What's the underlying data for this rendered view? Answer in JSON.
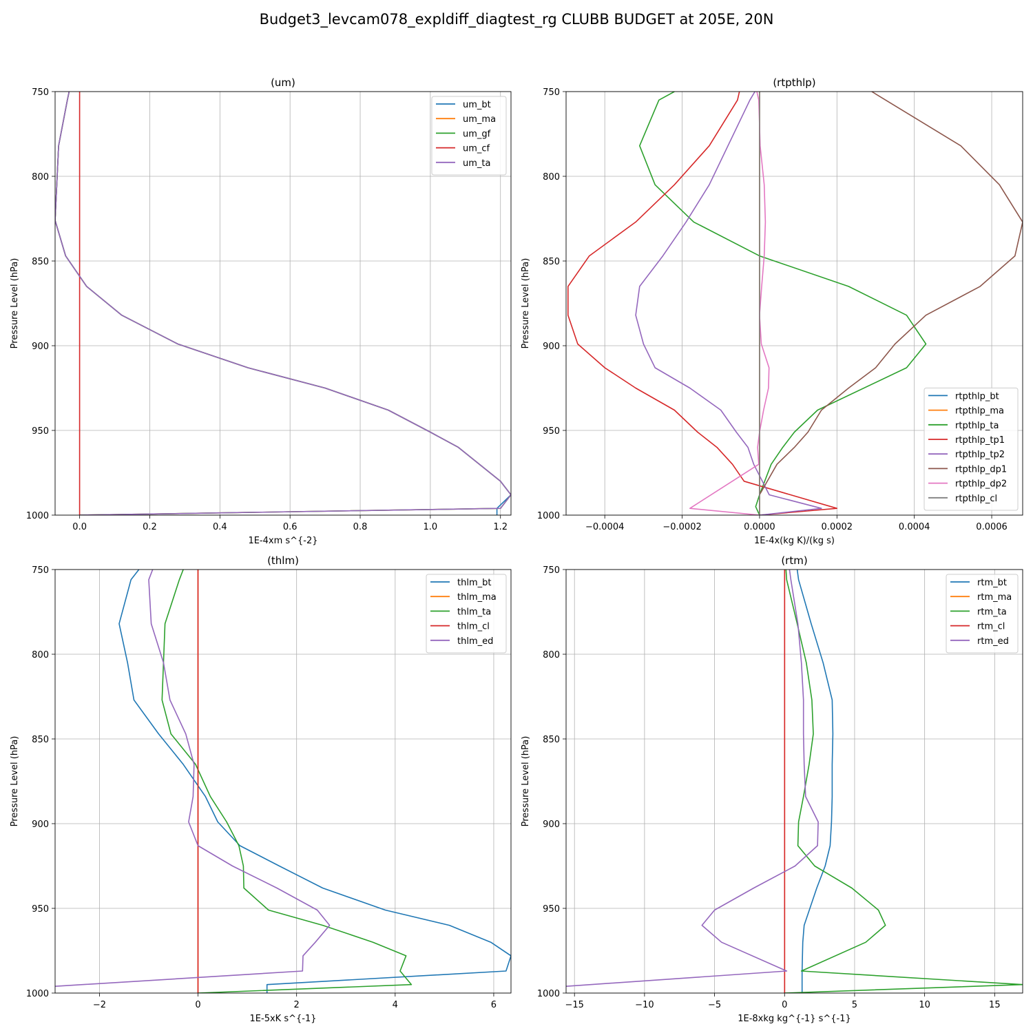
{
  "suptitle": "Budget3_levcam078_expldiff_diagtest_rg CLUBB BUDGET at 205E, 20N",
  "chart_data": [
    {
      "type": "line",
      "title": "(um)",
      "xlabel": "1E-4xm s^{-2}",
      "ylabel": "Pressure Level (hPa)",
      "xlim": [
        -0.07,
        1.23
      ],
      "ylim": [
        1000,
        750
      ],
      "xticks": [
        0.0,
        0.2,
        0.4,
        0.6,
        0.8,
        1.0,
        1.2
      ],
      "xtick_labels": [
        "0.0",
        "0.2",
        "0.4",
        "0.6",
        "0.8",
        "1.0",
        "1.2"
      ],
      "yticks": [
        750,
        800,
        850,
        900,
        950,
        1000
      ],
      "ytick_labels": [
        "750",
        "800",
        "850",
        "900",
        "950",
        "1000"
      ],
      "grid": true,
      "legend_position": "top-right",
      "series": [
        {
          "name": "um_bt",
          "color": "#1f77b4",
          "x": [
            -0.03,
            -0.035,
            -0.06,
            -0.07,
            -0.04,
            0.02,
            0.12,
            0.28,
            0.48,
            0.7,
            0.88,
            1.0,
            1.08,
            1.2,
            1.23,
            1.19,
            1.19
          ],
          "y": [
            750,
            755,
            782,
            826,
            847,
            865,
            882,
            899,
            913,
            925,
            938,
            951,
            960,
            980,
            988,
            996,
            1000
          ]
        },
        {
          "name": "um_ma",
          "color": "#ff7f0e",
          "x": [
            -0.03,
            -0.035,
            -0.06,
            -0.07,
            -0.04,
            0.02,
            0.12,
            0.28,
            0.48,
            0.7,
            0.88,
            1.0,
            1.08,
            1.2,
            1.23,
            1.2,
            0.0
          ],
          "y": [
            750,
            755,
            782,
            826,
            847,
            865,
            882,
            899,
            913,
            925,
            938,
            951,
            960,
            980,
            988,
            996,
            1000
          ]
        },
        {
          "name": "um_gf",
          "color": "#2ca02c",
          "x": [
            -0.03,
            -0.035,
            -0.06,
            -0.07,
            -0.04,
            0.02,
            0.12,
            0.28,
            0.48,
            0.7,
            0.88,
            1.0,
            1.08,
            1.2,
            1.23,
            1.2,
            0.0
          ],
          "y": [
            750,
            755,
            782,
            826,
            847,
            865,
            882,
            899,
            913,
            925,
            938,
            951,
            960,
            980,
            988,
            996,
            1000
          ]
        },
        {
          "name": "um_cf",
          "color": "#d62728",
          "x": [
            0.0,
            0.0
          ],
          "y": [
            750,
            1000
          ]
        },
        {
          "name": "um_ta",
          "color": "#9467bd",
          "x": [
            -0.03,
            -0.035,
            -0.06,
            -0.07,
            -0.04,
            0.02,
            0.12,
            0.28,
            0.48,
            0.7,
            0.88,
            1.0,
            1.08,
            1.2,
            1.23,
            1.2,
            0.0
          ],
          "y": [
            750,
            755,
            782,
            826,
            847,
            865,
            882,
            899,
            913,
            925,
            938,
            951,
            960,
            980,
            988,
            996,
            1000
          ]
        }
      ]
    },
    {
      "type": "line",
      "title": "(rtpthlp)",
      "xlabel": "1E-4x(kg K)/(kg s)",
      "ylabel": "Pressure Level (hPa)",
      "xlim": [
        -0.0005,
        0.00068
      ],
      "ylim": [
        1000,
        750
      ],
      "xticks": [
        -0.0004,
        -0.0002,
        0.0,
        0.0002,
        0.0004,
        0.0006
      ],
      "xtick_labels": [
        "−0.0004",
        "−0.0002",
        "0.0000",
        "0.0002",
        "0.0004",
        "0.0006"
      ],
      "yticks": [
        750,
        800,
        850,
        900,
        950,
        1000
      ],
      "ytick_labels": [
        "750",
        "800",
        "850",
        "900",
        "950",
        "1000"
      ],
      "grid": true,
      "legend_position": "bottom-right",
      "series": [
        {
          "name": "rtpthlp_bt",
          "color": "#1f77b4",
          "x": [
            0.0,
            0.0
          ],
          "y": [
            750,
            1000
          ]
        },
        {
          "name": "rtpthlp_ma",
          "color": "#ff7f0e",
          "x": [
            0.0,
            0.0
          ],
          "y": [
            750,
            1000
          ]
        },
        {
          "name": "rtpthlp_ta",
          "color": "#2ca02c",
          "x": [
            -0.00022,
            -0.00026,
            -0.00031,
            -0.00027,
            -0.00017,
            0.0,
            0.00023,
            0.00038,
            0.00043,
            0.00038,
            0.00015,
            9e-05,
            6e-05,
            3e-05,
            0.0,
            -1e-05,
            0.0
          ],
          "y": [
            750,
            755,
            782,
            805,
            827,
            847,
            865,
            882,
            899,
            913,
            938,
            951,
            960,
            970,
            988,
            995,
            1000
          ]
        },
        {
          "name": "rtpthlp_tp1",
          "color": "#d62728",
          "x": [
            -5.2e-05,
            -5.7e-05,
            -0.00013,
            -0.00022,
            -0.00032,
            -0.00044,
            -0.000495,
            -0.000495,
            -0.00047,
            -0.0004,
            -0.00032,
            -0.00022,
            -0.00016,
            -0.00011,
            -7e-05,
            -4e-05,
            0.0002,
            0.0
          ],
          "y": [
            750,
            755,
            782,
            805,
            827,
            847,
            865,
            882,
            899,
            913,
            925,
            938,
            951,
            960,
            970,
            980,
            996,
            1000
          ]
        },
        {
          "name": "rtpthlp_tp2",
          "color": "#9467bd",
          "x": [
            -1.2e-05,
            -2.5e-05,
            -0.00013,
            -0.00019,
            -0.00025,
            -0.00031,
            -0.00032,
            -0.0003,
            -0.00027,
            -0.00018,
            -0.0001,
            -6e-05,
            -3e-05,
            -1.5e-05,
            2.5e-05,
            0.00016,
            0.0
          ],
          "y": [
            750,
            755,
            805,
            827,
            847,
            865,
            882,
            899,
            913,
            925,
            938,
            951,
            960,
            970,
            988,
            996,
            1000
          ]
        },
        {
          "name": "rtpthlp_dp1",
          "color": "#8c564b",
          "x": [
            0.00029,
            0.00034,
            0.00052,
            0.00062,
            0.00068,
            0.00066,
            0.00057,
            0.00043,
            0.00035,
            0.0003,
            0.00023,
            0.00016,
            0.000125,
            9e-05,
            4.5e-05,
            0.0
          ],
          "y": [
            750,
            757,
            782,
            805,
            827,
            847,
            865,
            882,
            899,
            913,
            925,
            938,
            951,
            960,
            970,
            988
          ]
        },
        {
          "name": "rtpthlp_dp2",
          "color": "#e377c2",
          "x": [
            -7e-06,
            -2e-06,
            1.5e-06,
            1.2e-05,
            1.5e-05,
            1.2e-05,
            5.5e-06,
            0.0,
            4.5e-06,
            2.45e-05,
            2.3e-05,
            1.05e-05,
            0.0,
            -5e-06,
            -2e-06,
            -0.00018,
            0.0
          ],
          "y": [
            750,
            755,
            782,
            805,
            827,
            847,
            865,
            882,
            899,
            913,
            925,
            938,
            951,
            960,
            970,
            996,
            1000
          ]
        },
        {
          "name": "rtpthlp_cl",
          "color": "#7f7f7f",
          "x": [
            0.0,
            0.0
          ],
          "y": [
            750,
            1000
          ]
        }
      ]
    },
    {
      "type": "line",
      "title": "(thlm)",
      "xlabel": "1E-5xK s^{-1}",
      "ylabel": "Pressure Level (hPa)",
      "xlim": [
        -2.9,
        6.35
      ],
      "ylim": [
        1000,
        750
      ],
      "xticks": [
        -2,
        0,
        2,
        4,
        6
      ],
      "xtick_labels": [
        "−2",
        "0",
        "2",
        "4",
        "6"
      ],
      "yticks": [
        750,
        800,
        850,
        900,
        950,
        1000
      ],
      "ytick_labels": [
        "750",
        "800",
        "850",
        "900",
        "950",
        "1000"
      ],
      "grid": true,
      "legend_position": "top-right",
      "series": [
        {
          "name": "thlm_bt",
          "color": "#1f77b4",
          "x": [
            -1.2,
            -1.36,
            -1.6,
            -1.43,
            -1.3,
            -0.8,
            -0.3,
            0.15,
            0.4,
            0.85,
            1.65,
            2.53,
            3.8,
            5.1,
            5.94,
            6.35,
            6.25,
            1.4,
            1.4
          ],
          "y": [
            750,
            756,
            782,
            805,
            827,
            847,
            865,
            884,
            899,
            913,
            925,
            938,
            951,
            960,
            970,
            978,
            987,
            995,
            1000
          ]
        },
        {
          "name": "thlm_ma",
          "color": "#ff7f0e",
          "x": [
            0.0,
            0.0
          ],
          "y": [
            750,
            1000
          ]
        },
        {
          "name": "thlm_ta",
          "color": "#2ca02c",
          "x": [
            -0.3,
            -0.38,
            -0.67,
            -0.7,
            -0.73,
            -0.55,
            -0.05,
            0.25,
            0.58,
            0.83,
            0.92,
            0.93,
            1.43,
            2.53,
            3.55,
            4.22,
            4.1,
            4.33,
            0.0
          ],
          "y": [
            750,
            756,
            782,
            805,
            827,
            847,
            865,
            884,
            899,
            913,
            925,
            938,
            951,
            960,
            970,
            978,
            987,
            995,
            1000
          ]
        },
        {
          "name": "thlm_cl",
          "color": "#d62728",
          "x": [
            0.0,
            0.0
          ],
          "y": [
            750,
            1000
          ]
        },
        {
          "name": "thlm_ed",
          "color": "#9467bd",
          "x": [
            -0.92,
            -1.0,
            -0.95,
            -0.7,
            -0.57,
            -0.25,
            -0.08,
            -0.1,
            -0.19,
            0.0,
            0.7,
            1.6,
            2.42,
            2.67,
            2.38,
            2.13,
            2.12,
            -2.9
          ],
          "y": [
            750,
            756,
            782,
            805,
            827,
            847,
            865,
            884,
            899,
            913,
            925,
            938,
            951,
            960,
            970,
            978,
            987,
            996
          ]
        }
      ]
    },
    {
      "type": "line",
      "title": "(rtm)",
      "xlabel": "1E-8xkg kg^{-1} s^{-1}",
      "ylabel": "Pressure Level (hPa)",
      "xlim": [
        -15.6,
        17.0
      ],
      "ylim": [
        1000,
        750
      ],
      "xticks": [
        -15,
        -10,
        -5,
        0,
        5,
        10,
        15
      ],
      "xtick_labels": [
        "−15",
        "−10",
        "−5",
        "0",
        "5",
        "10",
        "15"
      ],
      "yticks": [
        750,
        800,
        850,
        900,
        950,
        1000
      ],
      "ytick_labels": [
        "750",
        "800",
        "850",
        "900",
        "950",
        "1000"
      ],
      "grid": true,
      "legend_position": "top-right",
      "series": [
        {
          "name": "rtm_bt",
          "color": "#1f77b4",
          "x": [
            0.9,
            1.0,
            1.9,
            2.75,
            3.4,
            3.45,
            3.4,
            3.4,
            3.35,
            3.25,
            2.9,
            2.3,
            1.4,
            1.3,
            1.25,
            1.25
          ],
          "y": [
            750,
            756,
            782,
            805,
            827,
            847,
            865,
            884,
            899,
            913,
            925,
            938,
            960,
            970,
            987,
            1000
          ]
        },
        {
          "name": "rtm_ma",
          "color": "#ff7f0e",
          "x": [
            0.0,
            0.0
          ],
          "y": [
            750,
            1000
          ]
        },
        {
          "name": "rtm_ta",
          "color": "#2ca02c",
          "x": [
            0.1,
            0.15,
            0.9,
            1.55,
            1.95,
            2.05,
            1.75,
            1.35,
            1.0,
            0.95,
            2.15,
            4.8,
            6.7,
            7.2,
            5.8,
            1.2,
            17.0,
            0.0
          ],
          "y": [
            750,
            756,
            782,
            805,
            827,
            847,
            865,
            884,
            899,
            913,
            925,
            938,
            951,
            960,
            970,
            987,
            995,
            1000
          ]
        },
        {
          "name": "rtm_cl",
          "color": "#d62728",
          "x": [
            0.0,
            0.0
          ],
          "y": [
            750,
            1000
          ]
        },
        {
          "name": "rtm_ed",
          "color": "#9467bd",
          "x": [
            0.35,
            0.45,
            0.95,
            1.2,
            1.35,
            1.35,
            1.4,
            1.5,
            2.4,
            2.35,
            0.75,
            -2.2,
            -5.0,
            -5.9,
            -4.5,
            0.15,
            -15.6
          ],
          "y": [
            750,
            756,
            782,
            805,
            827,
            847,
            865,
            884,
            899,
            913,
            925,
            938,
            951,
            960,
            970,
            987,
            996
          ]
        }
      ]
    }
  ]
}
